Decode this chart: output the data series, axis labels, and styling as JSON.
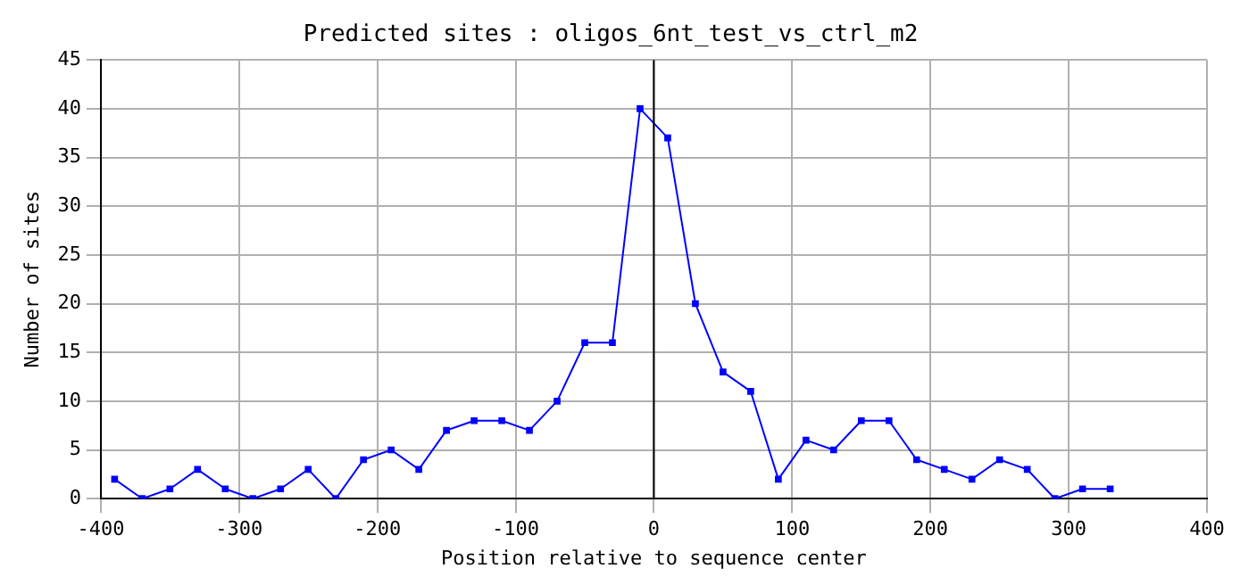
{
  "chart_data": {
    "type": "line",
    "title": "Predicted sites : oligos_6nt_test_vs_ctrl_m2",
    "xlabel": "Position relative to sequence center",
    "ylabel": "Number of sites",
    "x": [
      -390,
      -370,
      -350,
      -330,
      -310,
      -290,
      -270,
      -250,
      -230,
      -210,
      -190,
      -170,
      -150,
      -130,
      -110,
      -90,
      -70,
      -50,
      -30,
      -10,
      10,
      30,
      50,
      70,
      90,
      110,
      130,
      150,
      170,
      190,
      210,
      230,
      250,
      270,
      290,
      310,
      330
    ],
    "series": [
      {
        "color": "#0000ff",
        "values": [
          2,
          0,
          1,
          3,
          1,
          0,
          1,
          3,
          0,
          4,
          5,
          3,
          7,
          8,
          8,
          7,
          10,
          16,
          16,
          40,
          37,
          20,
          13,
          11,
          2,
          6,
          5,
          8,
          8,
          4,
          3,
          2,
          4,
          3,
          0,
          1,
          1
        ]
      }
    ],
    "xlim": [
      -400,
      400
    ],
    "xticks": [
      -400,
      -300,
      -200,
      -100,
      0,
      100,
      200,
      300,
      400
    ],
    "ylim": [
      0,
      45
    ],
    "yticks": [
      0,
      5,
      10,
      15,
      20,
      25,
      30,
      35,
      40,
      45
    ],
    "ref_lines": [
      {
        "axis": "x",
        "value": 0,
        "color": "#000000"
      }
    ],
    "grid": true,
    "marker": "square",
    "line_style": "solid",
    "legend": false
  }
}
